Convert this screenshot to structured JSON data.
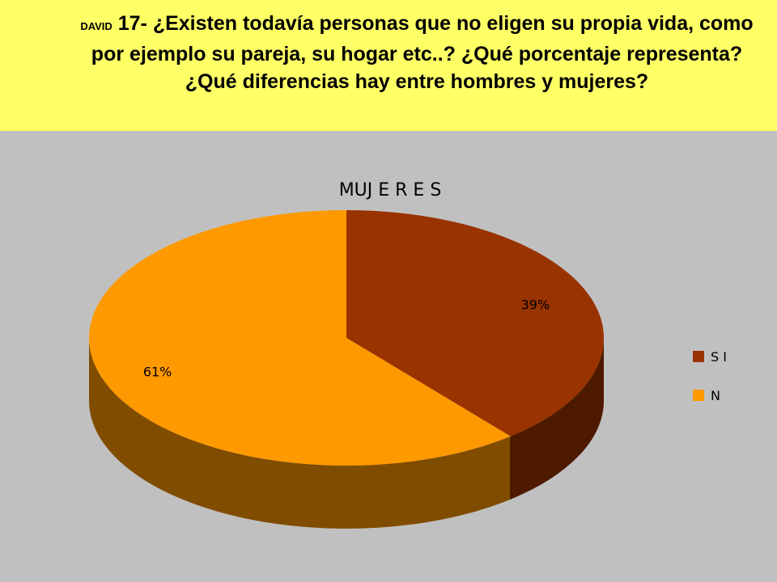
{
  "question": {
    "author": "DAVID",
    "text": "17- ¿Existen todavía personas que no eligen su propia vida, como por ejemplo su pareja, su hogar etc..? ¿Qué porcentaje representa? ¿Qué diferencias hay entre hombres y mujeres?"
  },
  "chart_data": {
    "type": "pie",
    "title": "MUJ E R E S",
    "style": "3d",
    "categories": [
      "S I",
      "N"
    ],
    "values": [
      39,
      61
    ],
    "labels": [
      "39%",
      "61%"
    ],
    "colors": [
      "#993300",
      "#ff9900"
    ],
    "side_colors": [
      "#4d1a00",
      "#804c00"
    ],
    "legend_position": "right"
  }
}
